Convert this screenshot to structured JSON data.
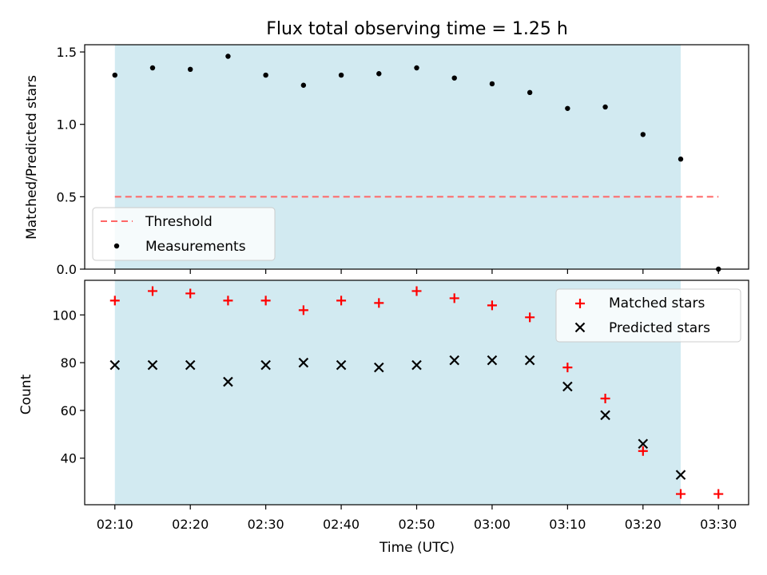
{
  "title": "Flux total observing time = 1.25 h",
  "colors": {
    "observing_span": "#add8e6",
    "threshold": "#ff6666",
    "measurements": "#000000",
    "matched": "#ff0000",
    "predicted": "#000000"
  },
  "chart_data": [
    {
      "type": "scatter",
      "ylabel": "Matched/Predicted stars",
      "ylim": [
        0,
        1.55
      ],
      "yticks": [
        "0.0",
        "0.5",
        "1.0",
        "1.5"
      ],
      "x": [
        "02:10",
        "02:15",
        "02:20",
        "02:25",
        "02:30",
        "02:35",
        "02:40",
        "02:45",
        "02:50",
        "02:55",
        "03:00",
        "03:05",
        "03:10",
        "03:15",
        "03:20",
        "03:25",
        "03:30"
      ],
      "shaded_span": [
        "02:10",
        "03:25"
      ],
      "threshold": {
        "name": "Threshold",
        "value": 0.5,
        "range": [
          "02:10",
          "03:30"
        ],
        "style": "dashed"
      },
      "series": [
        {
          "name": "Measurements",
          "marker": "dot",
          "values": [
            1.34,
            1.39,
            1.38,
            1.47,
            1.34,
            1.27,
            1.34,
            1.35,
            1.39,
            1.32,
            1.28,
            1.22,
            1.11,
            1.12,
            0.93,
            0.76,
            0.0
          ]
        }
      ],
      "legend": [
        "Threshold",
        "Measurements"
      ],
      "legend_position": "lower-left",
      "grid": false
    },
    {
      "type": "scatter",
      "xlabel": "Time (UTC)",
      "ylabel": "Count",
      "ylim": [
        20.5,
        114.5
      ],
      "yticks": [
        "40",
        "60",
        "80",
        "100"
      ],
      "xticks": [
        "02:10",
        "02:20",
        "02:30",
        "02:40",
        "02:50",
        "03:00",
        "03:10",
        "03:20",
        "03:30"
      ],
      "x": [
        "02:10",
        "02:15",
        "02:20",
        "02:25",
        "02:30",
        "02:35",
        "02:40",
        "02:45",
        "02:50",
        "02:55",
        "03:00",
        "03:05",
        "03:10",
        "03:15",
        "03:20",
        "03:25",
        "03:30"
      ],
      "shaded_span": [
        "02:10",
        "03:25"
      ],
      "series": [
        {
          "name": "Matched stars",
          "marker": "plus",
          "values": [
            106,
            110,
            109,
            106,
            106,
            102,
            106,
            105,
            110,
            107,
            104,
            99,
            78,
            65,
            43,
            25,
            25
          ]
        },
        {
          "name": "Predicted stars",
          "marker": "x",
          "x": [
            "02:10",
            "02:15",
            "02:20",
            "02:25",
            "02:30",
            "02:35",
            "02:40",
            "02:45",
            "02:50",
            "02:55",
            "03:00",
            "03:05",
            "03:10",
            "03:15",
            "03:20",
            "03:25"
          ],
          "values": [
            79,
            79,
            79,
            72,
            79,
            80,
            79,
            78,
            79,
            81,
            81,
            81,
            70,
            58,
            46,
            33
          ]
        }
      ],
      "legend": [
        "Matched stars",
        "Predicted stars"
      ],
      "legend_position": "upper-right",
      "grid": false
    }
  ]
}
